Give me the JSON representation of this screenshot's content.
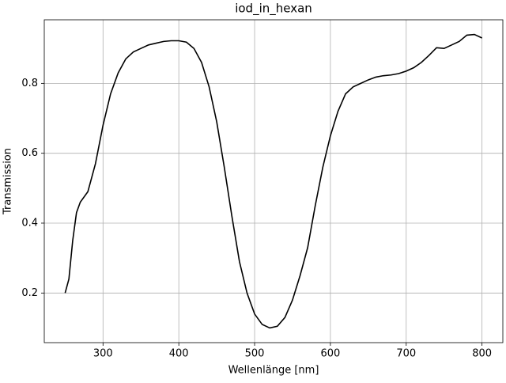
{
  "chart_data": {
    "type": "line",
    "title": "iod_in_hexan",
    "xlabel": "Wellenlänge [nm]",
    "ylabel": "Transmission",
    "x": [
      250,
      255,
      260,
      265,
      270,
      280,
      290,
      300,
      310,
      320,
      330,
      340,
      350,
      360,
      370,
      380,
      390,
      400,
      410,
      420,
      430,
      440,
      450,
      460,
      470,
      480,
      490,
      500,
      510,
      520,
      530,
      540,
      550,
      560,
      570,
      580,
      590,
      600,
      610,
      620,
      630,
      640,
      650,
      660,
      670,
      680,
      690,
      700,
      710,
      720,
      730,
      740,
      750,
      760,
      770,
      780,
      790,
      800
    ],
    "series": [
      {
        "color": "#000000",
        "values": [
          0.2,
          0.24,
          0.35,
          0.43,
          0.46,
          0.49,
          0.57,
          0.68,
          0.77,
          0.83,
          0.87,
          0.89,
          0.9,
          0.91,
          0.915,
          0.92,
          0.922,
          0.922,
          0.918,
          0.9,
          0.86,
          0.79,
          0.69,
          0.56,
          0.42,
          0.29,
          0.2,
          0.14,
          0.11,
          0.1,
          0.105,
          0.13,
          0.18,
          0.25,
          0.33,
          0.45,
          0.56,
          0.65,
          0.72,
          0.77,
          0.79,
          0.8,
          0.81,
          0.818,
          0.822,
          0.824,
          0.828,
          0.835,
          0.845,
          0.86,
          0.88,
          0.902,
          0.9,
          0.91,
          0.92,
          0.938,
          0.94,
          0.93
        ]
      }
    ],
    "xlim": [
      222.5,
      827.5
    ],
    "ylim": [
      0.058,
      0.982
    ],
    "xticks": [
      300,
      400,
      500,
      600,
      700,
      800
    ],
    "yticks": [
      0.2,
      0.4,
      0.6,
      0.8
    ],
    "grid": true
  }
}
